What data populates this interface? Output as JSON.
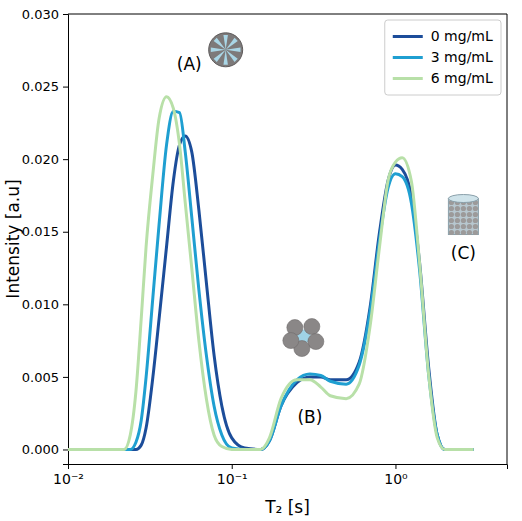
{
  "chart_data": {
    "type": "line",
    "x_label": "T₂ [s]",
    "y_label": "Intensity [a.u]",
    "log": "x",
    "grid": false,
    "legend": "upper right",
    "xlim": [
      0.01,
      4.8
    ],
    "ylim": [
      -0.001,
      0.03
    ],
    "xticks": [
      {
        "value": 0.01,
        "label": "10⁻²"
      },
      {
        "value": 0.1,
        "label": "10⁻¹"
      },
      {
        "value": 1,
        "label": "10⁰"
      }
    ],
    "yticks": [
      {
        "value": 0,
        "label": "0.000"
      },
      {
        "value": 0.005,
        "label": "0.005"
      },
      {
        "value": 0.01,
        "label": "0.010"
      },
      {
        "value": 0.015,
        "label": "0.015"
      },
      {
        "value": 0.02,
        "label": "0.020"
      },
      {
        "value": 0.025,
        "label": "0.025"
      },
      {
        "value": 0.03,
        "label": "0.030"
      }
    ],
    "x": [
      0.01,
      0.02,
      0.022,
      0.024,
      0.026,
      0.028,
      0.03,
      0.033,
      0.036,
      0.04,
      0.044,
      0.048,
      0.052,
      0.057,
      0.063,
      0.07,
      0.078,
      0.087,
      0.1,
      0.12,
      0.15,
      0.17,
      0.2,
      0.25,
      0.3,
      0.35,
      0.4,
      0.5,
      0.6,
      0.7,
      0.8,
      0.9,
      1.0,
      1.1,
      1.25,
      1.4,
      1.6,
      1.8,
      2.0,
      3.0
    ],
    "series": [
      {
        "name": "0 mg/mL",
        "color": "#1c4d9a",
        "values": [
          0,
          0,
          0,
          0,
          0,
          0.0003,
          0.0015,
          0.005,
          0.009,
          0.014,
          0.0185,
          0.021,
          0.0216,
          0.0205,
          0.0165,
          0.0115,
          0.0065,
          0.003,
          0.0008,
          0.0001,
          0,
          0.0006,
          0.003,
          0.0046,
          0.005,
          0.005,
          0.0048,
          0.0048,
          0.006,
          0.0098,
          0.015,
          0.0185,
          0.0196,
          0.0193,
          0.0175,
          0.013,
          0.0055,
          0.001,
          0,
          0
        ]
      },
      {
        "name": "3 mg/mL",
        "color": "#1f9fd1",
        "values": [
          0,
          0,
          0,
          0,
          0.0005,
          0.002,
          0.005,
          0.0105,
          0.0155,
          0.021,
          0.0233,
          0.0232,
          0.0205,
          0.016,
          0.011,
          0.0065,
          0.003,
          0.001,
          0.0001,
          0,
          0,
          0.0006,
          0.003,
          0.0048,
          0.0052,
          0.0051,
          0.0047,
          0.0045,
          0.0058,
          0.0095,
          0.0145,
          0.018,
          0.019,
          0.0188,
          0.017,
          0.0125,
          0.005,
          0.001,
          0,
          0
        ]
      },
      {
        "name": "6 mg/mL",
        "color": "#b8e0a8",
        "values": [
          0,
          0,
          0,
          0.001,
          0.004,
          0.009,
          0.014,
          0.019,
          0.0228,
          0.0243,
          0.0235,
          0.021,
          0.017,
          0.0125,
          0.0075,
          0.0035,
          0.001,
          0.0002,
          0,
          0,
          0,
          0.0008,
          0.0035,
          0.0048,
          0.0048,
          0.0043,
          0.0037,
          0.0035,
          0.0045,
          0.0085,
          0.014,
          0.0185,
          0.0198,
          0.0201,
          0.0185,
          0.013,
          0.005,
          0.0008,
          0,
          0
        ]
      }
    ],
    "annotations": [
      {
        "text": "(A)",
        "x": 0.055,
        "y": 0.0265
      },
      {
        "text": "(B)",
        "x": 0.3,
        "y": 0.0022
      },
      {
        "text": "(C)",
        "x": 2.6,
        "y": 0.0135
      }
    ]
  }
}
